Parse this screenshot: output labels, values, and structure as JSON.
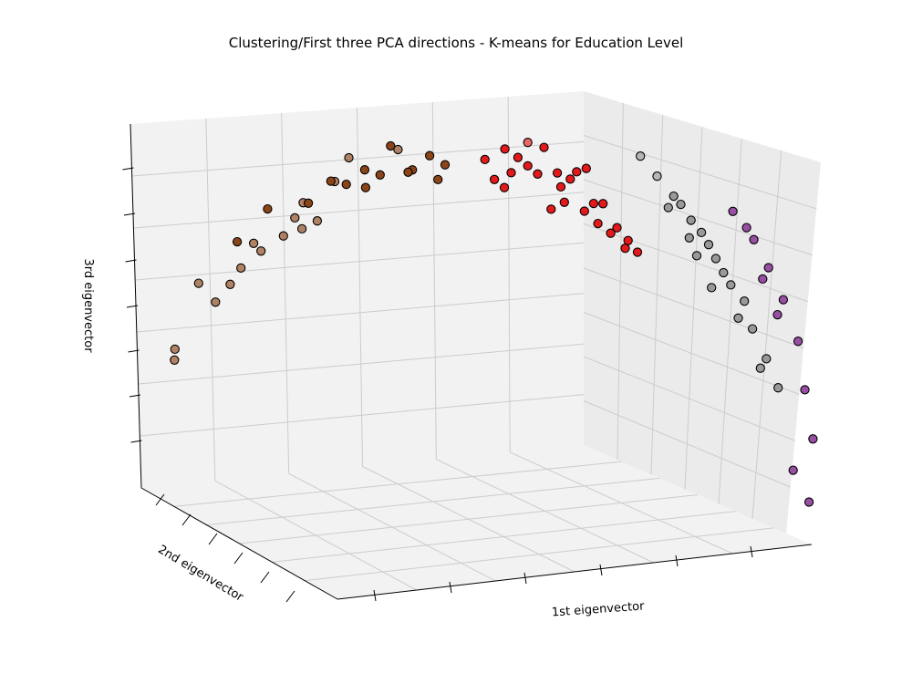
{
  "chart_data": {
    "type": "scatter3d",
    "title": "Clustering/First three PCA directions - K-means for Education Level",
    "xlabel": "1st eigenvector",
    "ylabel": "2nd eigenvector",
    "zlabel": "3rd eigenvector",
    "tick_labels_visible": false,
    "grid": true,
    "legend": "none",
    "view": {
      "elevation_deg": 15,
      "azimuth_deg": -110
    },
    "clusters": [
      {
        "id": 0,
        "color": "#8c4519",
        "points": [
          [
            -0.97,
            0.74,
            -0.35
          ],
          [
            -0.97,
            0.78,
            -0.29
          ],
          [
            -0.79,
            0.78,
            0.1
          ],
          [
            -0.69,
            0.76,
            0.3
          ],
          [
            -0.56,
            0.77,
            0.44
          ],
          [
            -0.55,
            0.59,
            0.59
          ],
          [
            -0.74,
            0.11,
            0.36
          ],
          [
            -0.45,
            0.08,
            0.73
          ],
          [
            -0.4,
            0.32,
            0.86
          ],
          [
            -0.34,
            -0.12,
            0.71
          ],
          [
            -0.21,
            -0.21,
            0.81
          ],
          [
            -0.27,
            0.24,
            0.94
          ],
          [
            -0.12,
            -0.24,
            0.78
          ],
          [
            -0.61,
            0.5,
            0.4
          ],
          [
            -0.5,
            0.35,
            0.5
          ],
          [
            -0.88,
            0.55,
            0.1
          ],
          [
            -0.3,
            0.1,
            0.78
          ],
          [
            -0.15,
            0.2,
            0.9
          ],
          [
            -0.65,
            0.25,
            0.55
          ],
          [
            -0.4,
            -0.05,
            0.72
          ],
          [
            -0.2,
            0.0,
            0.82
          ],
          [
            -0.83,
            0.6,
            0.0
          ],
          [
            -0.7,
            0.4,
            0.35
          ],
          [
            -0.52,
            0.1,
            0.6
          ],
          [
            -0.25,
            0.4,
            0.92
          ],
          [
            -0.58,
            0.7,
            0.5
          ],
          [
            -0.1,
            -0.1,
            0.86
          ],
          [
            -0.45,
            0.55,
            0.72
          ],
          [
            -0.75,
            0.65,
            0.2
          ],
          [
            -0.35,
            0.25,
            0.8
          ]
        ]
      },
      {
        "id": 1,
        "color": "#e31a1c",
        "points": [
          [
            0.08,
            0.2,
            0.96
          ],
          [
            0.15,
            -0.05,
            0.88
          ],
          [
            0.25,
            -0.2,
            0.78
          ],
          [
            0.32,
            -0.35,
            0.66
          ],
          [
            0.4,
            -0.3,
            0.55
          ],
          [
            0.45,
            -0.5,
            0.52
          ],
          [
            0.2,
            0.3,
            0.98
          ],
          [
            0.05,
            -0.3,
            0.8
          ],
          [
            0.28,
            0.1,
            0.82
          ],
          [
            0.35,
            -0.1,
            0.7
          ],
          [
            0.12,
            0.1,
            0.92
          ],
          [
            0.48,
            -0.4,
            0.46
          ],
          [
            0.22,
            -0.4,
            0.66
          ],
          [
            0.38,
            0.05,
            0.7
          ],
          [
            0.1,
            -0.2,
            0.84
          ],
          [
            0.3,
            0.2,
            0.86
          ],
          [
            0.18,
            -0.1,
            0.84
          ],
          [
            0.42,
            -0.2,
            0.58
          ],
          [
            0.26,
            -0.3,
            0.7
          ],
          [
            0.02,
            0.0,
            0.9
          ],
          [
            0.33,
            0.3,
            0.88
          ],
          [
            0.44,
            -0.6,
            0.48
          ],
          [
            0.15,
            0.4,
            1.0
          ],
          [
            0.36,
            -0.45,
            0.6
          ],
          [
            0.08,
            -0.35,
            0.76
          ],
          [
            0.24,
            0.05,
            0.85
          ]
        ]
      },
      {
        "id": 2,
        "color": "#999999",
        "points": [
          [
            0.6,
            0.3,
            0.76
          ],
          [
            0.65,
            0.1,
            0.64
          ],
          [
            0.7,
            -0.1,
            0.52
          ],
          [
            0.74,
            -0.35,
            0.38
          ],
          [
            0.8,
            -0.5,
            0.24
          ],
          [
            0.82,
            -0.7,
            0.1
          ],
          [
            0.86,
            -0.8,
            -0.05
          ],
          [
            0.9,
            -0.7,
            -0.2
          ],
          [
            0.55,
            0.4,
            0.86
          ],
          [
            0.62,
            0.2,
            0.72
          ],
          [
            0.68,
            0.0,
            0.58
          ],
          [
            0.72,
            -0.2,
            0.45
          ],
          [
            0.76,
            -0.45,
            0.32
          ],
          [
            0.58,
            0.1,
            0.7
          ],
          [
            0.66,
            -0.3,
            0.46
          ],
          [
            0.78,
            -0.6,
            0.15
          ],
          [
            0.5,
            0.55,
            0.96
          ],
          [
            0.64,
            -0.15,
            0.55
          ],
          [
            0.7,
            -0.55,
            0.3
          ],
          [
            0.84,
            -0.9,
            -0.1
          ]
        ]
      },
      {
        "id": 3,
        "color": "#984ea3",
        "points": [
          [
            0.78,
            0.2,
            0.7
          ],
          [
            0.84,
            0.0,
            0.56
          ],
          [
            0.88,
            -0.2,
            0.42
          ],
          [
            0.92,
            -0.4,
            0.26
          ],
          [
            0.96,
            -0.6,
            0.05
          ],
          [
            0.98,
            -0.7,
            -0.2
          ],
          [
            1.0,
            -0.9,
            -0.45
          ],
          [
            0.94,
            -1.0,
            -0.62
          ],
          [
            0.99,
            -0.98,
            -0.78
          ],
          [
            0.86,
            -0.3,
            0.36
          ],
          [
            0.9,
            -0.5,
            0.18
          ],
          [
            0.82,
            0.1,
            0.62
          ]
        ]
      }
    ]
  }
}
